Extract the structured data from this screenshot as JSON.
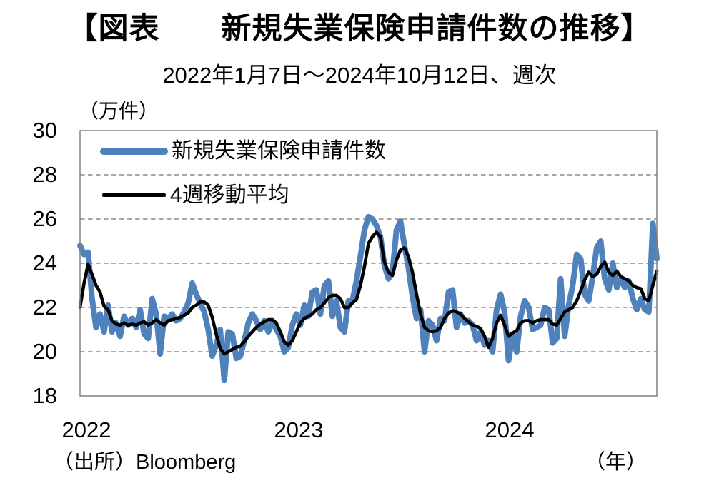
{
  "header": {
    "title": "【図表　　新規失業保険申請件数の推移】",
    "subtitle": "2022年1月7日～2024年10月12日、週次"
  },
  "footer": {
    "source": "（出所）Bloomberg"
  },
  "chart_data": {
    "type": "line",
    "title": "新規失業保険申請件数の推移",
    "period": "2022年1月7日～2024年10月12日",
    "frequency": "週次",
    "y_unit_label": "（万件）",
    "x_unit_label": "（年）",
    "ylim": [
      18,
      30
    ],
    "yticks": [
      30,
      28,
      26,
      24,
      22,
      20,
      18
    ],
    "gridlines": [
      28,
      26,
      24,
      22,
      20
    ],
    "grid_style": "dashed-horizontal",
    "xticks": [
      {
        "label": "2022"
      },
      {
        "label": "2023"
      },
      {
        "label": "2024"
      }
    ],
    "legend_position": "top-left-inside",
    "colors": {
      "claims": "#4F81BD",
      "moving_average": "#000000",
      "grid": "#8c8c8c",
      "border": "#808080"
    },
    "series": [
      {
        "name": "新規失業保険申請件数",
        "color": "#4F81BD",
        "values": [
          24.8,
          24.4,
          24.5,
          22.4,
          21.1,
          21.7,
          20.9,
          22.1,
          20.9,
          21.3,
          20.7,
          21.6,
          21.2,
          21.5,
          21.1,
          21.9,
          20.8,
          20.6,
          22.4,
          21.7,
          19.9,
          21.6,
          21.5,
          21.7,
          21.4,
          21.5,
          21.8,
          22.2,
          23.1,
          22.6,
          22.2,
          21.8,
          21.0,
          19.8,
          20.3,
          21.0,
          18.7,
          20.9,
          20.8,
          19.7,
          19.8,
          20.5,
          21.3,
          21.7,
          21.4,
          21.0,
          21.4,
          20.9,
          21.4,
          21.0,
          20.7,
          20.0,
          20.2,
          21.2,
          21.7,
          21.2,
          22.1,
          21.6,
          22.7,
          22.8,
          21.7,
          23.0,
          23.2,
          21.6,
          22.3,
          21.1,
          20.9,
          22.3,
          22.3,
          23.2,
          24.3,
          25.5,
          26.1,
          26.0,
          25.7,
          25.2,
          23.9,
          23.3,
          23.6,
          25.5,
          25.9,
          24.8,
          23.8,
          22.5,
          21.5,
          21.9,
          20.0,
          21.4,
          21.2,
          20.5,
          21.5,
          21.4,
          22.7,
          22.8,
          21.1,
          21.7,
          21.3,
          21.4,
          21.2,
          20.5,
          20.9,
          20.3,
          20.5,
          20.0,
          21.9,
          22.6,
          21.8,
          19.6,
          20.8,
          20.0,
          21.6,
          22.3,
          22.0,
          21.0,
          21.1,
          21.2,
          22.0,
          21.9,
          20.4,
          20.6,
          23.3,
          20.7,
          22.1,
          23.0,
          24.4,
          24.2,
          22.6,
          22.3,
          23.4,
          24.7,
          25.0,
          23.3,
          22.8,
          24.0,
          22.9,
          23.3,
          22.9,
          23.2,
          22.4,
          21.9,
          22.4,
          21.9,
          21.8,
          25.8,
          24.2
        ]
      },
      {
        "name": "4週移動平均",
        "color": "#000000",
        "values": [
          22.0,
          23.1,
          23.95,
          23.5,
          23.0,
          22.7,
          22.05,
          21.9,
          21.4,
          21.25,
          21.2,
          21.3,
          21.2,
          21.25,
          21.2,
          21.3,
          21.35,
          21.2,
          21.3,
          21.45,
          21.3,
          21.2,
          21.4,
          21.45,
          21.5,
          21.55,
          21.65,
          21.75,
          22.0,
          22.1,
          22.25,
          22.25,
          22.1,
          21.55,
          20.8,
          20.15,
          19.9,
          20.0,
          20.1,
          20.2,
          20.25,
          20.45,
          20.7,
          20.9,
          21.1,
          21.25,
          21.35,
          21.45,
          21.45,
          21.3,
          20.9,
          20.45,
          20.3,
          20.5,
          20.9,
          21.3,
          21.5,
          21.6,
          21.7,
          21.9,
          22.0,
          22.2,
          22.45,
          22.55,
          22.55,
          22.4,
          22.0,
          22.0,
          22.2,
          22.35,
          23.0,
          23.85,
          24.9,
          25.2,
          25.4,
          25.2,
          24.05,
          23.6,
          23.45,
          24.15,
          24.6,
          24.7,
          24.3,
          23.6,
          22.6,
          21.7,
          21.1,
          20.95,
          20.9,
          20.95,
          21.1,
          21.5,
          21.75,
          21.85,
          21.8,
          21.7,
          21.5,
          21.35,
          21.2,
          21.15,
          21.05,
          20.7,
          20.2,
          20.6,
          21.3,
          21.65,
          21.2,
          20.7,
          20.85,
          20.95,
          21.3,
          21.4,
          21.4,
          21.3,
          21.4,
          21.45,
          21.45,
          21.45,
          21.25,
          21.2,
          21.5,
          21.8,
          21.9,
          22.0,
          22.3,
          22.75,
          23.25,
          23.6,
          23.4,
          23.5,
          23.85,
          24.05,
          23.6,
          23.45,
          23.65,
          23.4,
          23.3,
          23.2,
          23.0,
          22.9,
          22.85,
          22.4,
          22.3,
          23.0,
          23.65
        ]
      }
    ]
  }
}
